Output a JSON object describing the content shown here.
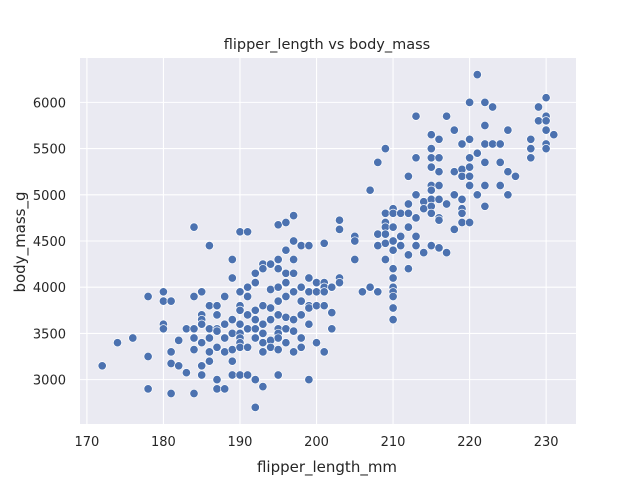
{
  "chart_data": {
    "type": "scatter",
    "title": "flipper_length vs body_mass",
    "xlabel": "flipper_length_mm",
    "ylabel": "body_mass_g",
    "xlim": [
      169.1,
      233.9
    ],
    "ylim": [
      2520,
      6480
    ],
    "xticks": [
      170,
      180,
      190,
      200,
      210,
      220,
      230
    ],
    "yticks": [
      3000,
      3500,
      4000,
      4500,
      5000,
      5500,
      6000
    ],
    "grid": true,
    "style": "seaborn-darkgrid",
    "colors": {
      "background": "#eaeaf2",
      "grid": "#ffffff",
      "marker": "#4c72b0",
      "marker_edge": "#ffffff",
      "text": "#262626"
    },
    "points": [
      [
        172,
        3150
      ],
      [
        174,
        3400
      ],
      [
        176,
        3450
      ],
      [
        178,
        3900
      ],
      [
        178,
        3250
      ],
      [
        178,
        2900
      ],
      [
        180,
        3950
      ],
      [
        180,
        3850
      ],
      [
        180,
        3600
      ],
      [
        180,
        3550
      ],
      [
        181,
        3850
      ],
      [
        181,
        3300
      ],
      [
        181,
        3175
      ],
      [
        181,
        2850
      ],
      [
        182,
        3425
      ],
      [
        182,
        3150
      ],
      [
        183,
        3550
      ],
      [
        183,
        3075
      ],
      [
        184,
        4650
      ],
      [
        184,
        3900
      ],
      [
        184,
        3550
      ],
      [
        184,
        3450
      ],
      [
        184,
        3325
      ],
      [
        184,
        2850
      ],
      [
        185,
        3950
      ],
      [
        185,
        3700
      ],
      [
        185,
        3650
      ],
      [
        185,
        3600
      ],
      [
        185,
        3400
      ],
      [
        185,
        3150
      ],
      [
        185,
        3050
      ],
      [
        186,
        4450
      ],
      [
        186,
        3800
      ],
      [
        186,
        3550
      ],
      [
        186,
        3450
      ],
      [
        186,
        3300
      ],
      [
        186,
        3200
      ],
      [
        187,
        3800
      ],
      [
        187,
        3700
      ],
      [
        187,
        3550
      ],
      [
        187,
        3525
      ],
      [
        187,
        3350
      ],
      [
        187,
        3000
      ],
      [
        187,
        2900
      ],
      [
        188,
        3900
      ],
      [
        188,
        3600
      ],
      [
        188,
        3450
      ],
      [
        188,
        3300
      ],
      [
        188,
        2900
      ],
      [
        189,
        4300
      ],
      [
        189,
        4100
      ],
      [
        189,
        3650
      ],
      [
        189,
        3500
      ],
      [
        189,
        3325
      ],
      [
        189,
        3200
      ],
      [
        189,
        3050
      ],
      [
        190,
        4600
      ],
      [
        190,
        3950
      ],
      [
        190,
        3800
      ],
      [
        190,
        3750
      ],
      [
        190,
        3600
      ],
      [
        190,
        3500
      ],
      [
        190,
        3450
      ],
      [
        190,
        3400
      ],
      [
        190,
        3350
      ],
      [
        190,
        3050
      ],
      [
        191,
        4600
      ],
      [
        191,
        4000
      ],
      [
        191,
        3900
      ],
      [
        191,
        3700
      ],
      [
        191,
        3550
      ],
      [
        191,
        3350
      ],
      [
        191,
        3050
      ],
      [
        192,
        2700
      ],
      [
        192,
        4150
      ],
      [
        192,
        4050
      ],
      [
        192,
        3750
      ],
      [
        192,
        3650
      ],
      [
        192,
        3550
      ],
      [
        192,
        3450
      ],
      [
        192,
        3000
      ],
      [
        193,
        4250
      ],
      [
        193,
        4200
      ],
      [
        193,
        3800
      ],
      [
        193,
        3600
      ],
      [
        193,
        3500
      ],
      [
        193,
        3400
      ],
      [
        193,
        3300
      ],
      [
        193,
        2925
      ],
      [
        194,
        4250
      ],
      [
        194,
        3975
      ],
      [
        194,
        3775
      ],
      [
        194,
        3650
      ],
      [
        194,
        3425
      ],
      [
        194,
        3350
      ],
      [
        195,
        4675
      ],
      [
        195,
        4300
      ],
      [
        195,
        4200
      ],
      [
        195,
        4000
      ],
      [
        195,
        3850
      ],
      [
        195,
        3700
      ],
      [
        195,
        3550
      ],
      [
        195,
        3500
      ],
      [
        195,
        3450
      ],
      [
        195,
        3325
      ],
      [
        195,
        3050
      ],
      [
        196,
        4700
      ],
      [
        196,
        4400
      ],
      [
        196,
        4150
      ],
      [
        196,
        4050
      ],
      [
        196,
        3900
      ],
      [
        196,
        3675
      ],
      [
        196,
        3550
      ],
      [
        196,
        3400
      ],
      [
        197,
        4775
      ],
      [
        197,
        4500
      ],
      [
        197,
        4300
      ],
      [
        197,
        4150
      ],
      [
        197,
        3950
      ],
      [
        197,
        3650
      ],
      [
        197,
        3525
      ],
      [
        197,
        3300
      ],
      [
        198,
        4450
      ],
      [
        198,
        4000
      ],
      [
        198,
        3850
      ],
      [
        198,
        3700
      ],
      [
        198,
        3450
      ],
      [
        198,
        3350
      ],
      [
        199,
        4450
      ],
      [
        199,
        4100
      ],
      [
        199,
        3950
      ],
      [
        199,
        3800
      ],
      [
        199,
        3775
      ],
      [
        199,
        3600
      ],
      [
        199,
        3000
      ],
      [
        200,
        4050
      ],
      [
        200,
        3950
      ],
      [
        200,
        3800
      ],
      [
        200,
        3400
      ],
      [
        201,
        4475
      ],
      [
        201,
        4050
      ],
      [
        201,
        4000
      ],
      [
        201,
        3950
      ],
      [
        201,
        3800
      ],
      [
        201,
        3300
      ],
      [
        202,
        4000
      ],
      [
        202,
        3725
      ],
      [
        202,
        3550
      ],
      [
        203,
        4725
      ],
      [
        203,
        4625
      ],
      [
        203,
        4100
      ],
      [
        203,
        4050
      ],
      [
        205,
        4550
      ],
      [
        205,
        4500
      ],
      [
        205,
        4300
      ],
      [
        206,
        3950
      ],
      [
        207,
        5050
      ],
      [
        207,
        4000
      ],
      [
        208,
        5350
      ],
      [
        208,
        4575
      ],
      [
        208,
        4450
      ],
      [
        208,
        3950
      ],
      [
        209,
        5500
      ],
      [
        209,
        4800
      ],
      [
        209,
        4700
      ],
      [
        209,
        4650
      ],
      [
        209,
        4575
      ],
      [
        209,
        4475
      ],
      [
        209,
        4300
      ],
      [
        210,
        4850
      ],
      [
        210,
        4800
      ],
      [
        210,
        4650
      ],
      [
        210,
        4500
      ],
      [
        210,
        4400
      ],
      [
        210,
        4200
      ],
      [
        210,
        4100
      ],
      [
        210,
        4000
      ],
      [
        210,
        3950
      ],
      [
        210,
        3900
      ],
      [
        210,
        3775
      ],
      [
        210,
        3650
      ],
      [
        211,
        4800
      ],
      [
        211,
        4550
      ],
      [
        211,
        4450
      ],
      [
        212,
        5200
      ],
      [
        212,
        4900
      ],
      [
        212,
        4800
      ],
      [
        212,
        4650
      ],
      [
        212,
        4350
      ],
      [
        212,
        4200
      ],
      [
        213,
        5850
      ],
      [
        213,
        5400
      ],
      [
        213,
        5000
      ],
      [
        213,
        4750
      ],
      [
        213,
        4550
      ],
      [
        213,
        4450
      ],
      [
        214,
        4925
      ],
      [
        214,
        4850
      ],
      [
        214,
        4375
      ],
      [
        215,
        5650
      ],
      [
        215,
        5500
      ],
      [
        215,
        5400
      ],
      [
        215,
        5300
      ],
      [
        215,
        5100
      ],
      [
        215,
        5050
      ],
      [
        215,
        4950
      ],
      [
        215,
        4875
      ],
      [
        215,
        4800
      ],
      [
        215,
        4450
      ],
      [
        216,
        5600
      ],
      [
        216,
        5400
      ],
      [
        216,
        5250
      ],
      [
        216,
        5100
      ],
      [
        216,
        4950
      ],
      [
        216,
        4750
      ],
      [
        216,
        4725
      ],
      [
        216,
        4425
      ],
      [
        217,
        5850
      ],
      [
        217,
        4900
      ],
      [
        217,
        4375
      ],
      [
        218,
        5700
      ],
      [
        218,
        5250
      ],
      [
        218,
        5000
      ],
      [
        218,
        4625
      ],
      [
        219,
        5550
      ],
      [
        219,
        5275
      ],
      [
        219,
        5200
      ],
      [
        219,
        4950
      ],
      [
        219,
        4850
      ],
      [
        219,
        4800
      ],
      [
        219,
        4700
      ],
      [
        220,
        6000
      ],
      [
        220,
        5600
      ],
      [
        220,
        5400
      ],
      [
        220,
        5300
      ],
      [
        220,
        5200
      ],
      [
        220,
        5100
      ],
      [
        220,
        4700
      ],
      [
        221,
        6300
      ],
      [
        221,
        5450
      ],
      [
        221,
        5000
      ],
      [
        222,
        6000
      ],
      [
        222,
        5750
      ],
      [
        222,
        5550
      ],
      [
        222,
        5350
      ],
      [
        222,
        5100
      ],
      [
        222,
        4875
      ],
      [
        223,
        5950
      ],
      [
        223,
        5550
      ],
      [
        224,
        5550
      ],
      [
        224,
        5350
      ],
      [
        224,
        5100
      ],
      [
        225,
        5700
      ],
      [
        225,
        5250
      ],
      [
        225,
        5000
      ],
      [
        226,
        5200
      ],
      [
        228,
        5600
      ],
      [
        228,
        5500
      ],
      [
        228,
        5400
      ],
      [
        229,
        5950
      ],
      [
        229,
        5800
      ],
      [
        230,
        6050
      ],
      [
        230,
        5850
      ],
      [
        230,
        5800
      ],
      [
        230,
        5700
      ],
      [
        230,
        5550
      ],
      [
        230,
        5500
      ],
      [
        231,
        5650
      ]
    ]
  }
}
